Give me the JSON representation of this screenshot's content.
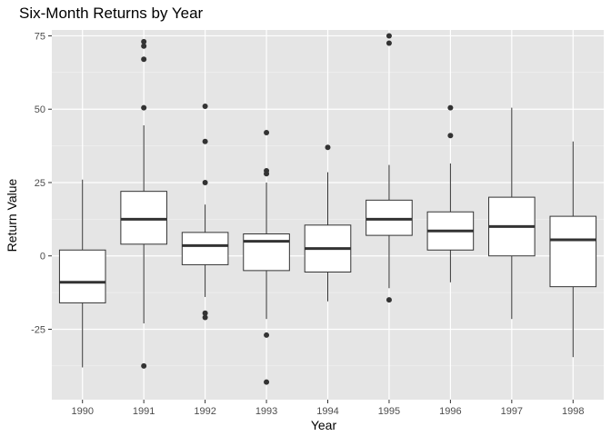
{
  "chart_data": {
    "type": "boxplot",
    "title": "Six-Month Returns by Year",
    "xlabel": "Year",
    "ylabel": "Return Value",
    "ylim": [
      -49,
      77
    ],
    "yticks": [
      -25,
      0,
      25,
      50,
      75
    ],
    "ytick_labels": [
      "-25",
      "0",
      "25",
      "50",
      "75"
    ],
    "grid": true,
    "colors": {
      "panel_background": "#e5e5e5",
      "grid_major": "#ffffff",
      "box_fill": "#ffffff",
      "box_line": "#333333",
      "outlier": "#333333"
    },
    "categories": [
      "1990",
      "1991",
      "1992",
      "1993",
      "1994",
      "1995",
      "1996",
      "1997",
      "1998"
    ],
    "boxes": [
      {
        "year": "1990",
        "whisker_low": -38,
        "q1": -16,
        "median": -9,
        "q3": 2,
        "whisker_high": 26,
        "outliers": []
      },
      {
        "year": "1991",
        "whisker_low": -23,
        "q1": 4,
        "median": 12.5,
        "q3": 22,
        "whisker_high": 44.5,
        "outliers": [
          73,
          71.5,
          67,
          50.5,
          -37.5
        ]
      },
      {
        "year": "1992",
        "whisker_low": -14,
        "q1": -3,
        "median": 3.5,
        "q3": 8,
        "whisker_high": 17.5,
        "outliers": [
          51,
          39,
          25,
          -19.5,
          -21
        ]
      },
      {
        "year": "1993",
        "whisker_low": -21.5,
        "q1": -5,
        "median": 5,
        "q3": 7.5,
        "whisker_high": 25,
        "outliers": [
          42,
          29,
          28,
          -27,
          -43
        ]
      },
      {
        "year": "1994",
        "whisker_low": -15.5,
        "q1": -5.5,
        "median": 2.5,
        "q3": 10.5,
        "whisker_high": 28.5,
        "outliers": [
          37
        ]
      },
      {
        "year": "1995",
        "whisker_low": -11,
        "q1": 7,
        "median": 12.5,
        "q3": 19,
        "whisker_high": 31,
        "outliers": [
          75,
          72.5,
          -15
        ]
      },
      {
        "year": "1996",
        "whisker_low": -9,
        "q1": 2,
        "median": 8.5,
        "q3": 15,
        "whisker_high": 31.5,
        "outliers": [
          50.5,
          41
        ]
      },
      {
        "year": "1997",
        "whisker_low": -21.5,
        "q1": 0,
        "median": 10,
        "q3": 20,
        "whisker_high": 50.5,
        "outliers": []
      },
      {
        "year": "1998",
        "whisker_low": -34.5,
        "q1": -10.5,
        "median": 5.5,
        "q3": 13.5,
        "whisker_high": 39,
        "outliers": []
      }
    ]
  }
}
